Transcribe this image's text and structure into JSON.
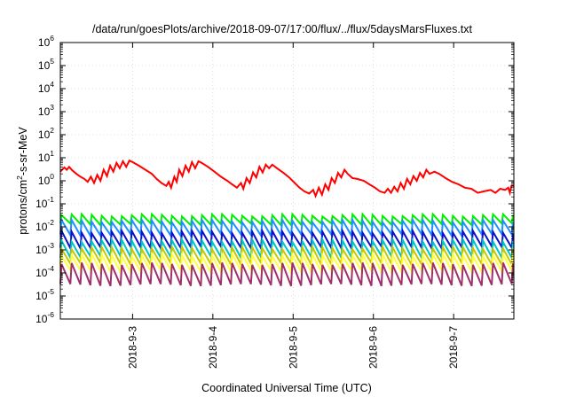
{
  "chart_data": {
    "type": "line",
    "title": "/data/run/goesPlots/archive/2018-09-07/17:00/flux/../flux/5daysMarsFluxes.txt",
    "xlabel": "Coordinated Universal Time (UTC)",
    "ylabel": {
      "base": "protons/cm",
      "sup": "2",
      "tail": "-s-sr-MeV"
    },
    "x_domain": [
      2.1,
      7.75
    ],
    "y_scale": "log",
    "ylim": [
      1e-06,
      1000000.0
    ],
    "y_tick_exponents": [
      -6,
      -5,
      -4,
      -3,
      -2,
      -1,
      0,
      1,
      2,
      3,
      4,
      5,
      6
    ],
    "y_tick_labels": [
      {
        "base": "10",
        "exp": "-6"
      },
      {
        "base": "10",
        "exp": "-5"
      },
      {
        "base": "10",
        "exp": "-4"
      },
      {
        "base": "10",
        "exp": "-3"
      },
      {
        "base": "10",
        "exp": "-2"
      },
      {
        "base": "10",
        "exp": "-1"
      },
      {
        "base": "10",
        "exp": "0"
      },
      {
        "base": "10",
        "exp": "1"
      },
      {
        "base": "10",
        "exp": "2"
      },
      {
        "base": "10",
        "exp": "3"
      },
      {
        "base": "10",
        "exp": "4"
      },
      {
        "base": "10",
        "exp": "5"
      },
      {
        "base": "10",
        "exp": "6"
      }
    ],
    "x_ticks": [
      {
        "value": 3,
        "label": "2018-9-3"
      },
      {
        "value": 4,
        "label": "2018-9-4"
      },
      {
        "value": 5,
        "label": "2018-9-5"
      },
      {
        "value": 6,
        "label": "2018-9-6"
      },
      {
        "value": 7,
        "label": "2018-9-7"
      }
    ],
    "grid": true,
    "legend": "none",
    "top_series": {
      "color": "#ff0000",
      "points": [
        [
          2.1,
          2.5
        ],
        [
          2.15,
          3.8
        ],
        [
          2.18,
          3.0
        ],
        [
          2.21,
          4.0
        ],
        [
          2.25,
          2.8
        ],
        [
          2.3,
          2.0
        ],
        [
          2.35,
          1.5
        ],
        [
          2.4,
          1.2
        ],
        [
          2.44,
          0.9
        ],
        [
          2.48,
          1.5
        ],
        [
          2.52,
          0.8
        ],
        [
          2.56,
          1.8
        ],
        [
          2.6,
          1.0
        ],
        [
          2.64,
          3.0
        ],
        [
          2.68,
          1.6
        ],
        [
          2.72,
          4.5
        ],
        [
          2.76,
          2.5
        ],
        [
          2.8,
          6.0
        ],
        [
          2.84,
          3.5
        ],
        [
          2.88,
          7.0
        ],
        [
          2.92,
          4.0
        ],
        [
          2.96,
          7.5
        ],
        [
          3.0,
          6.5
        ],
        [
          3.08,
          4.5
        ],
        [
          3.16,
          3.0
        ],
        [
          3.24,
          2.0
        ],
        [
          3.3,
          1.2
        ],
        [
          3.36,
          0.8
        ],
        [
          3.42,
          0.6
        ],
        [
          3.45,
          0.9
        ],
        [
          3.48,
          0.5
        ],
        [
          3.52,
          1.5
        ],
        [
          3.55,
          0.9
        ],
        [
          3.58,
          3.0
        ],
        [
          3.62,
          1.6
        ],
        [
          3.66,
          4.5
        ],
        [
          3.7,
          2.5
        ],
        [
          3.74,
          6.5
        ],
        [
          3.78,
          3.5
        ],
        [
          3.82,
          7.0
        ],
        [
          3.86,
          6.0
        ],
        [
          3.94,
          4.0
        ],
        [
          4.02,
          2.5
        ],
        [
          4.1,
          1.5
        ],
        [
          4.18,
          1.0
        ],
        [
          4.24,
          0.7
        ],
        [
          4.3,
          0.5
        ],
        [
          4.35,
          0.8
        ],
        [
          4.38,
          0.45
        ],
        [
          4.42,
          1.3
        ],
        [
          4.46,
          0.8
        ],
        [
          4.5,
          2.3
        ],
        [
          4.54,
          1.4
        ],
        [
          4.58,
          4.0
        ],
        [
          4.62,
          2.3
        ],
        [
          4.66,
          5.0
        ],
        [
          4.7,
          3.5
        ],
        [
          4.74,
          5.0
        ],
        [
          4.8,
          3.5
        ],
        [
          4.88,
          2.2
        ],
        [
          4.95,
          1.4
        ],
        [
          5.02,
          0.8
        ],
        [
          5.08,
          0.5
        ],
        [
          5.14,
          0.35
        ],
        [
          5.2,
          0.28
        ],
        [
          5.25,
          0.4
        ],
        [
          5.28,
          0.22
        ],
        [
          5.32,
          0.5
        ],
        [
          5.36,
          0.25
        ],
        [
          5.4,
          0.7
        ],
        [
          5.44,
          0.4
        ],
        [
          5.48,
          1.3
        ],
        [
          5.52,
          0.8
        ],
        [
          5.56,
          2.2
        ],
        [
          5.6,
          1.4
        ],
        [
          5.64,
          3.0
        ],
        [
          5.68,
          2.0
        ],
        [
          5.74,
          1.3
        ],
        [
          5.8,
          1.2
        ],
        [
          5.88,
          1.0
        ],
        [
          5.95,
          0.7
        ],
        [
          6.02,
          0.5
        ],
        [
          6.08,
          0.35
        ],
        [
          6.14,
          0.3
        ],
        [
          6.18,
          0.45
        ],
        [
          6.22,
          0.3
        ],
        [
          6.26,
          0.55
        ],
        [
          6.3,
          0.35
        ],
        [
          6.34,
          0.8
        ],
        [
          6.38,
          0.45
        ],
        [
          6.42,
          1.2
        ],
        [
          6.46,
          0.7
        ],
        [
          6.5,
          1.6
        ],
        [
          6.54,
          1.0
        ],
        [
          6.58,
          2.2
        ],
        [
          6.62,
          1.4
        ],
        [
          6.66,
          3.0
        ],
        [
          6.7,
          2.0
        ],
        [
          6.76,
          2.5
        ],
        [
          6.82,
          2.0
        ],
        [
          6.9,
          1.3
        ],
        [
          6.98,
          0.9
        ],
        [
          7.06,
          0.7
        ],
        [
          7.14,
          0.5
        ],
        [
          7.22,
          0.45
        ],
        [
          7.3,
          0.3
        ],
        [
          7.38,
          0.35
        ],
        [
          7.46,
          0.4
        ],
        [
          7.52,
          0.3
        ],
        [
          7.58,
          0.45
        ],
        [
          7.64,
          0.4
        ],
        [
          7.68,
          0.5
        ],
        [
          7.7,
          0.3
        ],
        [
          7.72,
          0.6
        ],
        [
          7.75,
          0.6
        ]
      ]
    },
    "sawtooth_series": [
      {
        "color": "#00ee00",
        "low": 0.013,
        "high": 0.032
      },
      {
        "color": "#1e90ff",
        "low": 0.0045,
        "high": 0.018
      },
      {
        "color": "#1010c8",
        "low": 0.0013,
        "high": 0.006
      },
      {
        "color": "#00c5c5",
        "low": 0.0005,
        "high": 0.0025
      },
      {
        "color": "#c8c800",
        "low": 0.00025,
        "high": 0.0012
      },
      {
        "color": "#ffff40",
        "low": 0.00012,
        "high": 0.0006
      },
      {
        "color": "#a0306a",
        "low": 3e-05,
        "high": 0.00025
      }
    ],
    "sawtooth_period_days": 0.125
  }
}
